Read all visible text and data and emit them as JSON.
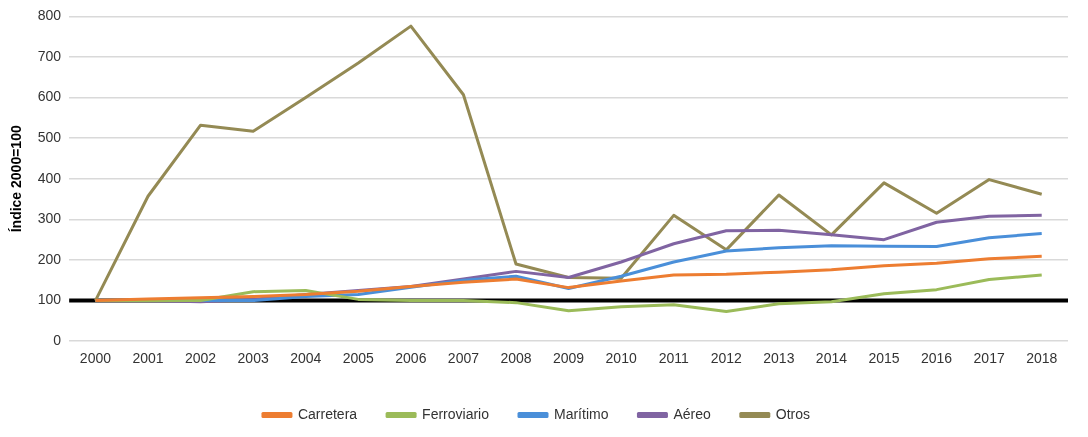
{
  "chart_data": {
    "type": "line",
    "ylabel": "Índice 2000=100",
    "categories": [
      "2000",
      "2001",
      "2002",
      "2003",
      "2004",
      "2005",
      "2006",
      "2007",
      "2008",
      "2009",
      "2010",
      "2011",
      "2012",
      "2013",
      "2014",
      "2015",
      "2016",
      "2017",
      "2018"
    ],
    "series": [
      {
        "name": "Carretera",
        "color": "#ed7d31",
        "values": [
          100,
          104,
          107,
          110,
          115,
          123,
          135,
          145,
          153,
          132,
          148,
          163,
          165,
          170,
          176,
          186,
          192,
          203,
          209
        ]
      },
      {
        "name": "Ferroviario",
        "color": "#9bbb59",
        "values": [
          100,
          100,
          100,
          122,
          125,
          103,
          100,
          100,
          95,
          75,
          85,
          90,
          73,
          92,
          97,
          117,
          127,
          152,
          163
        ]
      },
      {
        "name": "Marítimo",
        "color": "#4a8fd9",
        "values": [
          100,
          100,
          100,
          100,
          110,
          115,
          133,
          150,
          160,
          130,
          160,
          195,
          222,
          230,
          235,
          234,
          233,
          255,
          265
        ]
      },
      {
        "name": "Aéreo",
        "color": "#8064a2",
        "values": [
          100,
          100,
          97,
          103,
          115,
          125,
          135,
          153,
          172,
          157,
          195,
          240,
          272,
          273,
          262,
          250,
          293,
          308,
          310
        ]
      },
      {
        "name": "Otros",
        "color": "#948a54",
        "values": [
          100,
          357,
          532,
          517,
          600,
          685,
          776,
          607,
          190,
          157,
          155,
          310,
          225,
          360,
          262,
          390,
          315,
          398,
          362
        ]
      }
    ],
    "ylim": [
      0,
      800
    ],
    "yticks": [
      0,
      100,
      200,
      300,
      400,
      500,
      600,
      700,
      800
    ],
    "ref_lines": [
      {
        "axis": "y",
        "value": 100,
        "color": "#000000"
      }
    ],
    "grid": "y",
    "legend": "bottom",
    "marker": "none",
    "line_style": "solid"
  }
}
